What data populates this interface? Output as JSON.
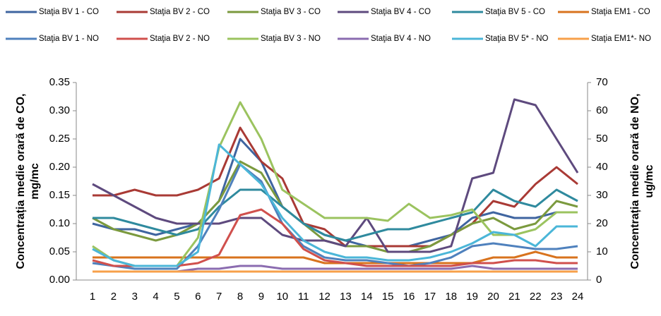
{
  "chart_data": {
    "type": "line",
    "y_label": [
      "Concentrația medie orară de CO,",
      "mg/mc"
    ],
    "y2_label": [
      "Concentrația medie orară de NO,",
      "ug/mc"
    ],
    "categories": [
      1,
      2,
      3,
      4,
      5,
      6,
      7,
      8,
      9,
      10,
      11,
      12,
      13,
      14,
      15,
      16,
      17,
      18,
      19,
      20,
      21,
      22,
      23,
      24
    ],
    "ylim": [
      0,
      0.35
    ],
    "yticks": [
      {
        "value": 0,
        "label": "0.00"
      },
      {
        "value": 0.05,
        "label": "0.05"
      },
      {
        "value": 0.1,
        "label": "0.10"
      },
      {
        "value": 0.15,
        "label": "0.15"
      },
      {
        "value": 0.2,
        "label": "0.20"
      },
      {
        "value": 0.25,
        "label": "0.25"
      },
      {
        "value": 0.3,
        "label": "0.30"
      },
      {
        "value": 0.35,
        "label": "0.35"
      }
    ],
    "y2lim": [
      0,
      70
    ],
    "y2ticks": [
      0,
      10,
      20,
      30,
      40,
      50,
      60,
      70
    ],
    "grid": false,
    "series": [
      {
        "name": "Staţia BV 1 - CO",
        "color": "#3f65a0",
        "values": [
          0.1,
          0.09,
          0.09,
          0.08,
          0.09,
          0.1,
          0.14,
          0.25,
          0.21,
          0.13,
          0.1,
          0.08,
          0.07,
          0.06,
          0.06,
          0.06,
          0.07,
          0.08,
          0.11,
          0.12,
          0.11,
          0.11,
          0.12,
          0.12
        ]
      },
      {
        "name": "Staţia BV 2 - CO",
        "color": "#a93a35",
        "values": [
          0.15,
          0.15,
          0.16,
          0.15,
          0.15,
          0.16,
          0.18,
          0.27,
          0.21,
          0.18,
          0.1,
          0.09,
          0.06,
          0.06,
          0.06,
          0.06,
          0.06,
          0.08,
          0.1,
          0.14,
          0.13,
          0.17,
          0.2,
          0.17
        ]
      },
      {
        "name": "Staţia BV 3 - CO",
        "color": "#7b9a3e",
        "values": [
          0.11,
          0.09,
          0.08,
          0.07,
          0.08,
          0.1,
          0.14,
          0.21,
          0.19,
          0.13,
          0.1,
          0.07,
          0.06,
          0.06,
          0.05,
          0.05,
          0.06,
          0.08,
          0.1,
          0.11,
          0.09,
          0.1,
          0.14,
          0.13
        ]
      },
      {
        "name": "Staţia BV 4 - CO",
        "color": "#5e4a7e",
        "values": [
          0.17,
          0.15,
          0.13,
          0.11,
          0.1,
          0.1,
          0.1,
          0.11,
          0.11,
          0.08,
          0.07,
          0.07,
          0.06,
          0.11,
          0.05,
          0.05,
          0.05,
          0.06,
          0.18,
          0.19,
          0.32,
          0.31,
          0.25,
          0.19
        ]
      },
      {
        "name": "Staţia BV 5 - CO",
        "color": "#2f8a9e",
        "values": [
          0.11,
          0.11,
          0.1,
          0.09,
          0.08,
          0.09,
          0.13,
          0.16,
          0.16,
          0.13,
          0.1,
          0.08,
          0.07,
          0.08,
          0.09,
          0.09,
          0.1,
          0.11,
          0.12,
          0.16,
          0.14,
          0.13,
          0.16,
          0.14
        ]
      },
      {
        "name": "Staţia EM1 - CO",
        "color": "#d8731e",
        "values": [
          0.04,
          0.04,
          0.04,
          0.04,
          0.04,
          0.04,
          0.04,
          0.04,
          0.04,
          0.04,
          0.04,
          0.03,
          0.03,
          0.03,
          0.03,
          0.03,
          0.03,
          0.03,
          0.03,
          0.04,
          0.04,
          0.05,
          0.04,
          0.04
        ]
      },
      {
        "name": "Staţia BV 1 - NO",
        "color": "#4f81bd",
        "axis": "y2",
        "values": [
          6,
          5,
          4,
          4,
          4,
          12,
          25,
          41,
          35,
          20,
          12,
          8,
          7,
          7,
          6,
          5,
          6,
          8,
          12,
          13,
          12,
          11,
          11,
          12
        ]
      },
      {
        "name": "Staţia BV 2 - NO",
        "color": "#d0504d",
        "axis": "y2",
        "values": [
          7,
          5,
          5,
          5,
          5,
          6,
          9,
          23,
          25,
          20,
          11,
          7,
          6,
          5,
          5,
          5,
          5,
          5,
          6,
          6,
          7,
          7,
          6,
          6
        ]
      },
      {
        "name": "Staţia BV 3 - NO",
        "color": "#9bc35f",
        "axis": "y2",
        "values": [
          12,
          7,
          5,
          5,
          5,
          15,
          47,
          63,
          50,
          32,
          27,
          22,
          22,
          22,
          21,
          27,
          22,
          23,
          25,
          16,
          16,
          18,
          24,
          24
        ]
      },
      {
        "name": "Staţia BV 4 - NO",
        "color": "#8b6cb0",
        "axis": "y2",
        "values": [
          3,
          3,
          3,
          3,
          3,
          4,
          4,
          5,
          5,
          4,
          4,
          4,
          4,
          4,
          4,
          4,
          4,
          4,
          5,
          4,
          4,
          4,
          4,
          4
        ]
      },
      {
        "name": "Staţia BV 5* - NO",
        "color": "#4bb6d8",
        "axis": "y2",
        "values": [
          11,
          7,
          5,
          5,
          5,
          10,
          48,
          41,
          34,
          22,
          14,
          10,
          8,
          8,
          7,
          7,
          8,
          10,
          13,
          17,
          16,
          12,
          19,
          19
        ]
      },
      {
        "name": "Staţia EM1*- NO",
        "color": "#f7a04a",
        "axis": "y2",
        "values": [
          3,
          3,
          3,
          3,
          3,
          3,
          3,
          3,
          3,
          3,
          3,
          3,
          3,
          3,
          3,
          3,
          3,
          3,
          3,
          3,
          3,
          3,
          3,
          3
        ]
      }
    ]
  }
}
